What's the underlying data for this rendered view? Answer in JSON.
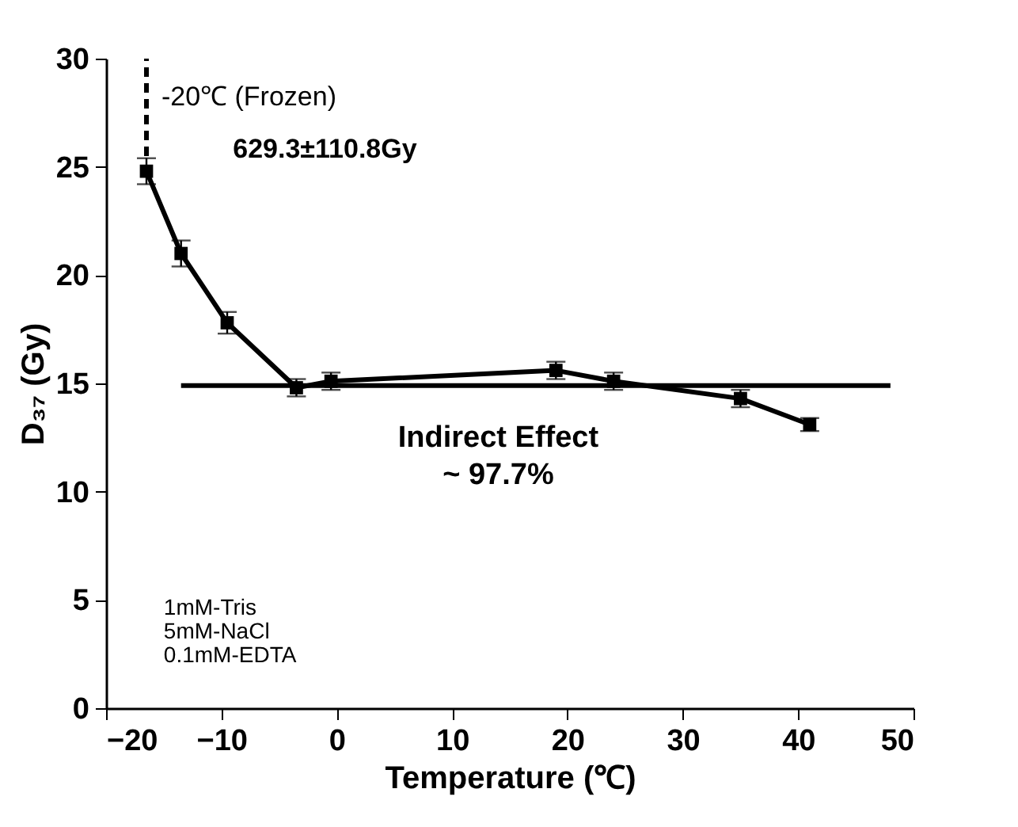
{
  "chart_data": {
    "type": "line",
    "xlabel": "Temperature (℃)",
    "ylabel": "D₃₇ (Gy)",
    "xlim": [
      -20,
      50
    ],
    "ylim": [
      0,
      30
    ],
    "xticks": [
      -20,
      -10,
      0,
      10,
      20,
      30,
      40,
      50
    ],
    "yticks": [
      0,
      5,
      10,
      15,
      20,
      25,
      30
    ],
    "grid": false,
    "series": [
      {
        "color": "#000000",
        "marker": "square",
        "line_style": "solid",
        "x": [
          -16.5,
          -13.5,
          -9.5,
          -3.5,
          -0.5,
          19,
          24,
          35,
          41
        ],
        "values": [
          24.8,
          21,
          17.8,
          14.8,
          15.1,
          15.6,
          15.1,
          14.3,
          13.1
        ],
        "errors": [
          0.6,
          0.6,
          0.5,
          0.4,
          0.4,
          0.4,
          0.4,
          0.4,
          0.3
        ]
      },
      {
        "type": "line",
        "color": "#000000",
        "marker": "none",
        "line_style": "solid",
        "x": [
          -13.5,
          48
        ],
        "values": [
          14.9,
          14.9
        ]
      },
      {
        "type": "line",
        "color": "#000000",
        "marker": "none",
        "line_style": "dashed",
        "x": [
          -16.5,
          -16.5
        ],
        "values": [
          25.5,
          30
        ]
      }
    ],
    "annotations": [
      "-20℃ (Frozen)",
      "629.3±110.8Gy",
      "Indirect Effect",
      "~ 97.7%",
      "1mM-Tris",
      "5mM-NaCl",
      "0.1mM-EDTA"
    ]
  }
}
